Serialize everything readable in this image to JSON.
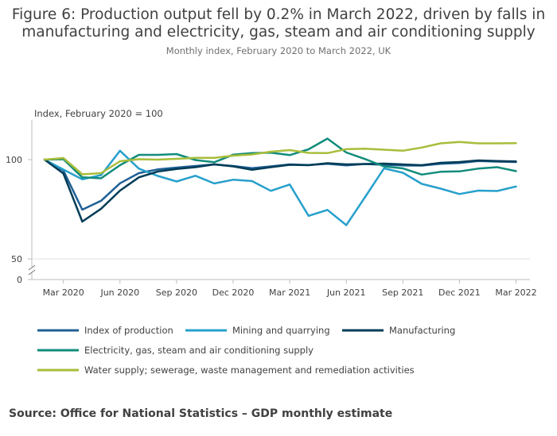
{
  "title_line1": "Figure 6: Production output fell by 0.2% in March 2022, driven by falls in",
  "title_line2": "manufacturing and electricity, gas, steam and air conditioning supply",
  "subtitle": "Monthly index, February 2020 to March 2022, UK",
  "source": "Source: Office for National Statistics – GDP monthly estimate",
  "chart_data": {
    "type": "line",
    "ylabel": "Index, February 2020 = 100",
    "xlabel": "",
    "y_break": [
      0,
      50
    ],
    "ylim": [
      50,
      120
    ],
    "y_ticks": [
      0,
      50,
      100
    ],
    "y_tick_labels": [
      "0",
      "50",
      "100"
    ],
    "x": [
      "Feb 2020",
      "Mar 2020",
      "Apr 2020",
      "May 2020",
      "Jun 2020",
      "Jul 2020",
      "Aug 2020",
      "Sep 2020",
      "Oct 2020",
      "Nov 2020",
      "Dec 2020",
      "Jan 2021",
      "Feb 2021",
      "Mar 2021",
      "Apr 2021",
      "May 2021",
      "Jun 2021",
      "Jul 2021",
      "Aug 2021",
      "Sep 2021",
      "Oct 2021",
      "Nov 2021",
      "Dec 2021",
      "Jan 2022",
      "Feb 2022",
      "Mar 2022"
    ],
    "x_tick_labels": [
      "Mar 2020",
      "Jun 2020",
      "Sep 2020",
      "Dec 2020",
      "Mar 2021",
      "Jun 2021",
      "Sep 2021",
      "Dec 2021",
      "Mar 2022"
    ],
    "x_tick_indices": [
      1,
      4,
      7,
      10,
      13,
      16,
      19,
      22,
      25
    ],
    "grid": false,
    "legend_position": "bottom",
    "series": [
      {
        "name": "Index of production",
        "color": "#206095",
        "width": 2.5,
        "values": [
          100,
          94.5,
          74.8,
          79.3,
          88.1,
          93.2,
          95.1,
          96.0,
          96.8,
          97.6,
          96.8,
          95.7,
          96.6,
          97.6,
          97.3,
          97.9,
          97.1,
          97.8,
          97.4,
          97.1,
          97.0,
          97.9,
          98.3,
          99.3,
          99.0,
          98.8
        ]
      },
      {
        "name": "Mining and quarrying",
        "color": "#27A0CC",
        "width": 2.5,
        "values": [
          100,
          95.0,
          90.1,
          92.2,
          104.5,
          95.5,
          91.8,
          89.0,
          91.9,
          88.0,
          89.9,
          89.2,
          84.3,
          87.5,
          71.7,
          74.7,
          67.0,
          81.2,
          95.6,
          93.4,
          87.8,
          85.4,
          82.7,
          84.4,
          84.2,
          86.5
        ]
      },
      {
        "name": "Manufacturing",
        "color": "#003C57",
        "width": 2.5,
        "values": [
          100,
          93.0,
          68.8,
          75.3,
          84.4,
          91.1,
          94.0,
          95.3,
          96.2,
          97.6,
          96.6,
          94.9,
          96.2,
          97.4,
          97.2,
          98.2,
          97.6,
          97.8,
          98.0,
          97.6,
          97.2,
          98.4,
          98.8,
          99.6,
          99.3,
          99.1
        ]
      },
      {
        "name": "Electricity, gas, steam and air conditioning supply",
        "color": "#118C7B",
        "width": 2.5,
        "values": [
          100,
          100.2,
          91.1,
          90.6,
          97.2,
          102.4,
          102.4,
          102.8,
          99.8,
          98.7,
          102.5,
          103.3,
          103.5,
          102.3,
          105.2,
          110.6,
          103.6,
          100.3,
          96.6,
          95.6,
          92.5,
          93.9,
          94.1,
          95.5,
          96.2,
          94.2
        ]
      },
      {
        "name": "Water supply; sewerage, waste management and remediation activities",
        "color": "#A8BD3A",
        "width": 2.5,
        "values": [
          100,
          100.8,
          92.6,
          93.2,
          99.2,
          100.2,
          100.0,
          100.4,
          100.9,
          100.9,
          102.0,
          102.6,
          104.0,
          104.8,
          103.4,
          103.3,
          105.3,
          105.5,
          105.0,
          104.5,
          106.1,
          108.2,
          108.9,
          108.2,
          108.2,
          108.3
        ]
      }
    ]
  }
}
